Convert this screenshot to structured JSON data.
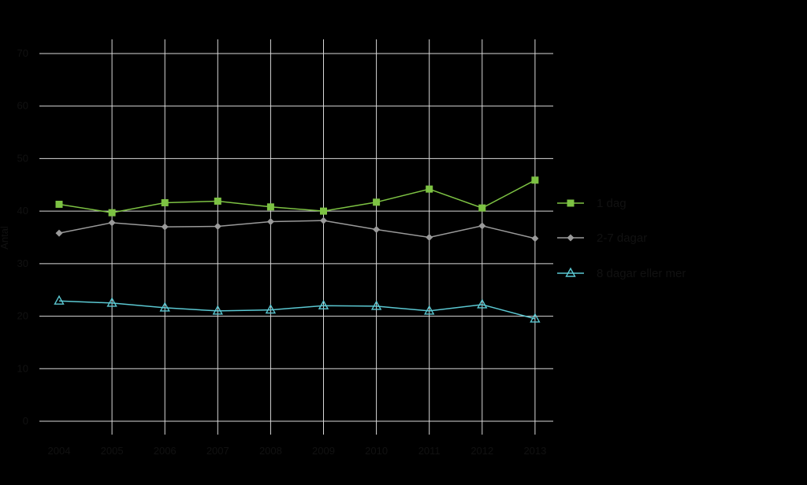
{
  "chart_data": {
    "type": "line",
    "title": "",
    "xlabel": "",
    "ylabel": "Antal",
    "categories": [
      "2004",
      "2005",
      "2006",
      "2007",
      "2008",
      "2009",
      "2010",
      "2011",
      "2012",
      "2013"
    ],
    "y_ticks": [
      0,
      10,
      20,
      30,
      40,
      50,
      60,
      70
    ],
    "ylim": [
      0,
      70
    ],
    "grid": true,
    "legend_position": "right",
    "series": [
      {
        "name": "1 dag",
        "color": "#7dc243",
        "marker": "square",
        "values": [
          41.3,
          39.7,
          41.6,
          41.9,
          40.8,
          40.0,
          41.7,
          44.2,
          40.6,
          45.9
        ]
      },
      {
        "name": "2-7 dagar",
        "color": "#9a9a9a",
        "marker": "diamond",
        "values": [
          35.8,
          37.8,
          37.0,
          37.1,
          38.0,
          38.2,
          36.5,
          35.0,
          37.2,
          34.8
        ]
      },
      {
        "name": "8 dagar eller mer",
        "color": "#5bc8d2",
        "marker": "triangle",
        "values": [
          22.9,
          22.5,
          21.6,
          21.0,
          21.2,
          22.0,
          21.9,
          21.0,
          22.2,
          19.5
        ]
      }
    ]
  }
}
